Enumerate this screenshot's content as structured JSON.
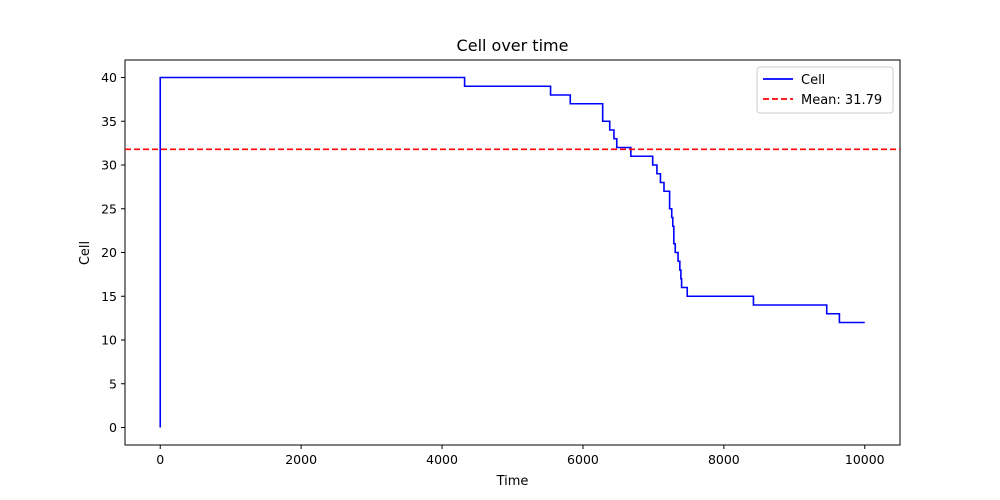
{
  "chart_data": {
    "type": "line",
    "title": "Cell over time",
    "xlabel": "Time",
    "ylabel": "Cell",
    "xlim": [
      -500,
      10500
    ],
    "ylim": [
      -2,
      42
    ],
    "xticks": [
      0,
      2000,
      4000,
      6000,
      8000,
      10000
    ],
    "yticks": [
      0,
      5,
      10,
      15,
      20,
      25,
      30,
      35,
      40
    ],
    "grid": false,
    "legend_position": "top-right",
    "series": [
      {
        "name": "Cell",
        "color": "#0000ff",
        "style": "step-post",
        "x": [
          0,
          0,
          4320,
          5540,
          5820,
          6280,
          6380,
          6440,
          6480,
          6680,
          6990,
          7050,
          7100,
          7150,
          7230,
          7260,
          7275,
          7290,
          7310,
          7350,
          7375,
          7390,
          7400,
          7480,
          8420,
          9460,
          9640,
          10000
        ],
        "y": [
          0,
          40,
          39,
          38,
          37,
          35,
          34,
          33,
          32,
          31,
          30,
          29,
          28,
          27,
          25,
          24,
          23,
          21,
          20,
          19,
          18,
          17,
          16,
          15,
          14,
          13,
          12,
          12
        ]
      }
    ],
    "reference_lines": [
      {
        "name": "Mean: 31.79",
        "value": 31.79,
        "orientation": "horizontal",
        "color": "#ff0000",
        "style": "dashed"
      }
    ]
  }
}
